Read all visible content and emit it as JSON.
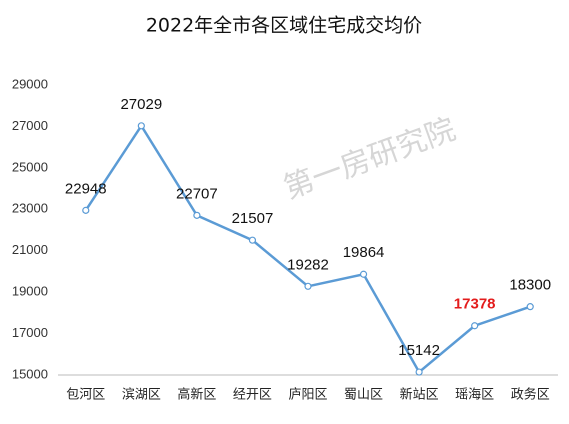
{
  "chart_data": {
    "type": "line",
    "title": "2022年全市各区域住宅成交均价",
    "watermark": "第一房研究院",
    "categories": [
      "包河区",
      "滨湖区",
      "高新区",
      "经开区",
      "庐阳区",
      "蜀山区",
      "新站区",
      "瑶海区",
      "政务区"
    ],
    "series": [
      {
        "color": "#5b9bd5",
        "values": [
          22948,
          27029,
          22707,
          21507,
          19282,
          19864,
          15142,
          17378,
          18300
        ]
      }
    ],
    "highlight_index": 7,
    "highlight_color": "#e31c1c",
    "ylim": [
      15000,
      29000
    ],
    "yticks": [
      15000,
      17000,
      19000,
      21000,
      23000,
      25000,
      27000,
      29000
    ],
    "grid": false
  }
}
